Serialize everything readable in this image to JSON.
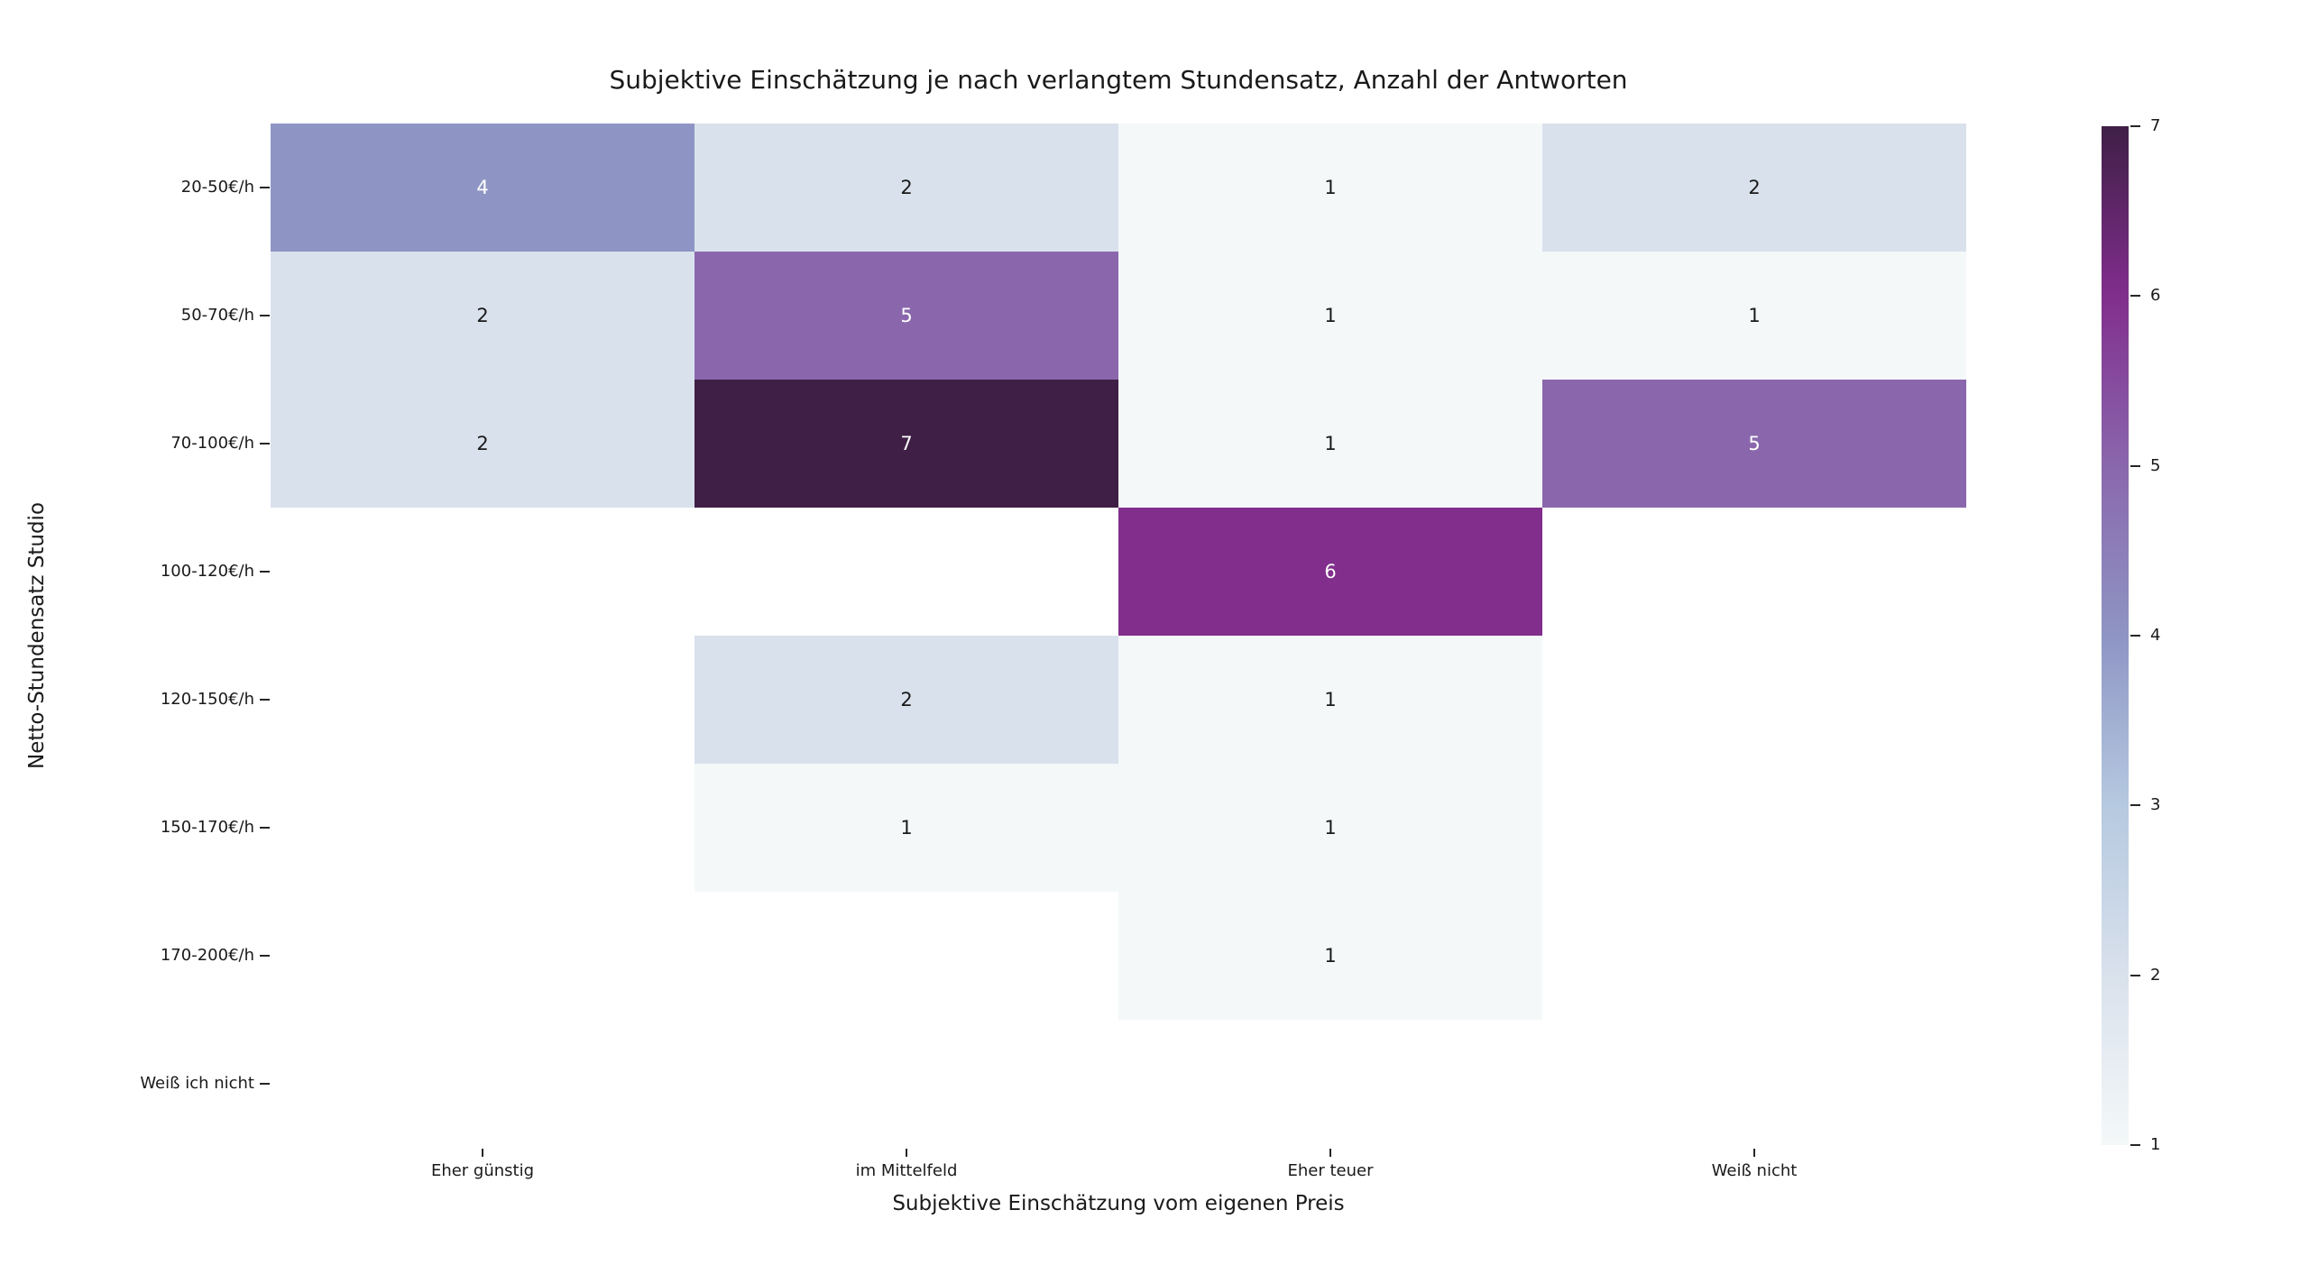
{
  "chart_data": {
    "type": "heatmap",
    "title": "Subjektive Einschätzung je nach verlangtem Stundensatz, Anzahl der Antworten",
    "xlabel": "Subjektive Einschätzung vom eigenen Preis",
    "ylabel": "Netto-Stundensatz Studio",
    "x_categories": [
      "Eher günstig",
      "im Mittelfeld",
      "Eher teuer",
      "Weiß nicht"
    ],
    "y_categories": [
      "20-50€/h",
      "50-70€/h",
      "70-100€/h",
      "100-120€/h",
      "120-150€/h",
      "150-170€/h",
      "170-200€/h",
      "Weiß ich nicht"
    ],
    "values": [
      [
        4,
        2,
        1,
        2
      ],
      [
        2,
        5,
        1,
        1
      ],
      [
        2,
        7,
        1,
        5
      ],
      [
        null,
        null,
        6,
        null
      ],
      [
        null,
        2,
        1,
        null
      ],
      [
        null,
        1,
        1,
        null
      ],
      [
        null,
        null,
        1,
        null
      ],
      [
        null,
        null,
        null,
        null
      ]
    ],
    "colorbar": {
      "min": 1,
      "max": 7,
      "ticks": [
        7,
        6,
        5,
        4,
        3,
        2,
        1
      ],
      "colormap": "BuPu"
    },
    "value_colors": {
      "1": "#f4f8f9",
      "2": "#d9e1ec",
      "3": "#b5c9e0",
      "4": "#8e95c4",
      "5": "#8a67ad",
      "6": "#812e8d",
      "7": "#3f1f46",
      "nan": "#ffffff"
    },
    "annotation_colors": {
      "light_cells_text": "#1a1a1a",
      "dark_cells_text": "#ffffff"
    },
    "legend_position": "right",
    "grid": false
  }
}
